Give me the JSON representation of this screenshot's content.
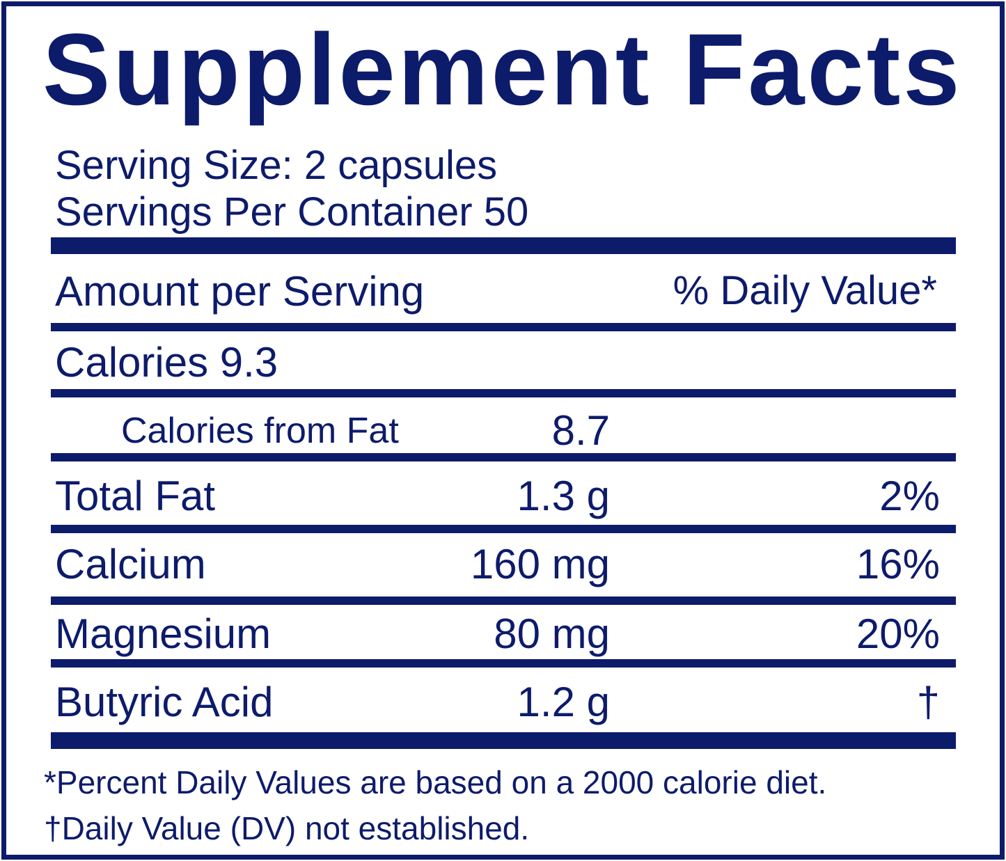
{
  "title": "Supplement Facts",
  "serving_size": "Serving Size: 2 capsules",
  "servings_per_container": "Servings Per Container  50",
  "header": {
    "amount_per_serving": "Amount per Serving",
    "daily_value": "% Daily Value*"
  },
  "calories": "Calories  9.3",
  "calories_from_fat": {
    "label": "Calories from Fat",
    "amount": "8.7"
  },
  "nutrients": [
    {
      "label": "Total Fat",
      "amount": "1.3 g",
      "dv": "2%"
    },
    {
      "label": "Calcium",
      "amount": "160 mg",
      "dv": "16%"
    },
    {
      "label": "Magnesium",
      "amount": "80 mg",
      "dv": "20%"
    },
    {
      "label": "Butyric Acid",
      "amount": "1.2 g",
      "dv": "†"
    }
  ],
  "footnotes": [
    "*Percent Daily Values are based on a 2000 calorie diet.",
    "†Daily Value (DV) not established."
  ],
  "colors": {
    "ink": "#0d1b6b",
    "background": "#ffffff"
  }
}
